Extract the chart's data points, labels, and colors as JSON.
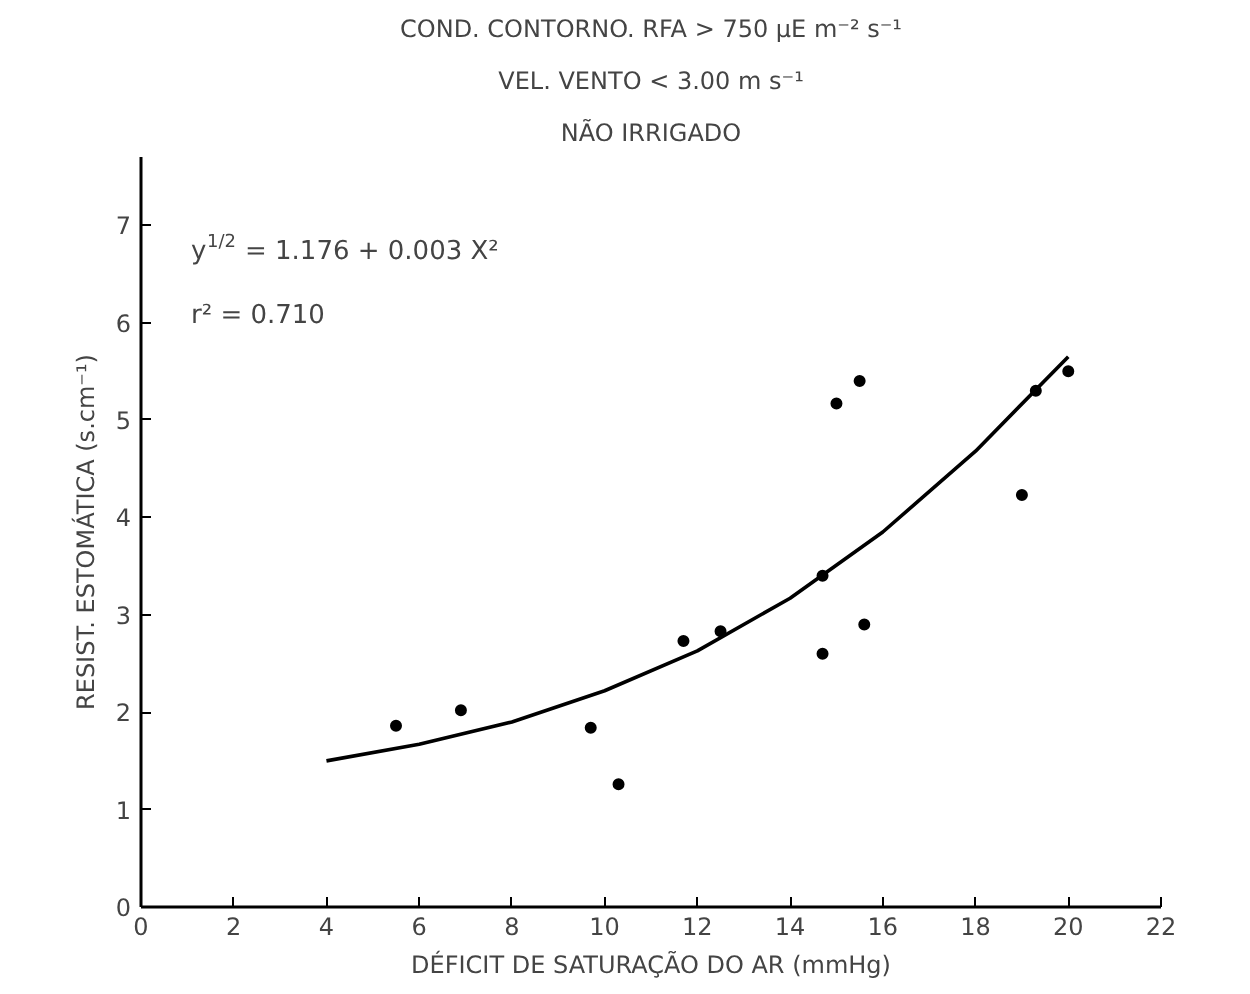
{
  "chart_data": {
    "type": "scatter",
    "title": "COND. CONTORNO. RFA > 750 μE m⁻² s⁻¹",
    "subtitle": "VEL. VENTO < 3.00 m s⁻¹",
    "xlabel": "DÉFICIT DE SATURAÇÃO DO AR (mmHg)",
    "ylabel": "RESIST. ESTOMÁTICA (s.cm⁻¹)",
    "annotations": [
      "NÃO IRRIGADO",
      "y$^{1/2}$ = 1.176 + 0.003 X²",
      "r² = 0.710"
    ],
    "x": [
      5.5,
      6.9,
      9.7,
      10.3,
      11.7,
      12.5,
      14.7,
      14.7,
      15.6,
      15.0,
      15.5,
      19.0,
      19.3,
      20.0
    ],
    "series": [
      {
        "color": "#000000",
        "marker": "circle",
        "values": [
          1.86,
          2.02,
          1.84,
          1.26,
          2.73,
          2.83,
          2.6,
          3.4,
          2.9,
          5.17,
          5.4,
          4.23,
          5.3,
          5.5
        ]
      },
      {
        "type": "line",
        "color": "#000000",
        "x": [
          4,
          6,
          8,
          10,
          12,
          14,
          16,
          18,
          20
        ],
        "values": [
          1.5,
          1.67,
          1.9,
          2.22,
          2.63,
          3.17,
          3.85,
          4.68,
          5.65
        ]
      }
    ],
    "xlim": [
      0,
      22
    ],
    "ylim": [
      0,
      7.7
    ],
    "xticks": [
      0,
      2,
      4,
      6,
      8,
      10,
      12,
      14,
      16,
      18,
      20,
      22
    ],
    "yticks": [
      0,
      1,
      2,
      3,
      4,
      5,
      6,
      7
    ],
    "grid": false,
    "line_style": "solid"
  }
}
